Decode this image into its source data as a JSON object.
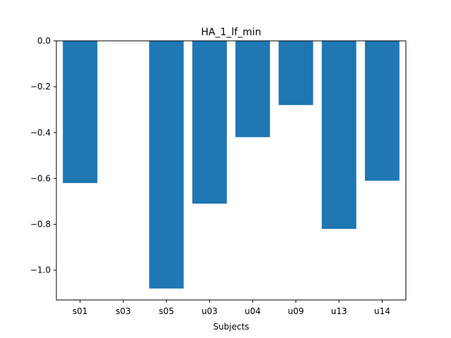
{
  "chart_data": {
    "type": "bar",
    "title": "HA_1_lf_min",
    "xlabel": "Subjects",
    "ylabel": "",
    "categories": [
      "s01",
      "s03",
      "s05",
      "u03",
      "u04",
      "u09",
      "u13",
      "u14"
    ],
    "values": [
      -0.62,
      0,
      -1.08,
      -0.71,
      -0.42,
      -0.28,
      -0.82,
      -0.61
    ],
    "ylim": [
      -1.13,
      0.0
    ],
    "yticks": [
      0.0,
      -0.2,
      -0.4,
      -0.6,
      -0.8,
      -1.0
    ],
    "ytick_labels": [
      "0.0",
      "−0.2",
      "−0.4",
      "−0.6",
      "−0.8",
      "−1.0"
    ],
    "bar_color": "#1f77b4",
    "grid": false,
    "legend": "none"
  }
}
